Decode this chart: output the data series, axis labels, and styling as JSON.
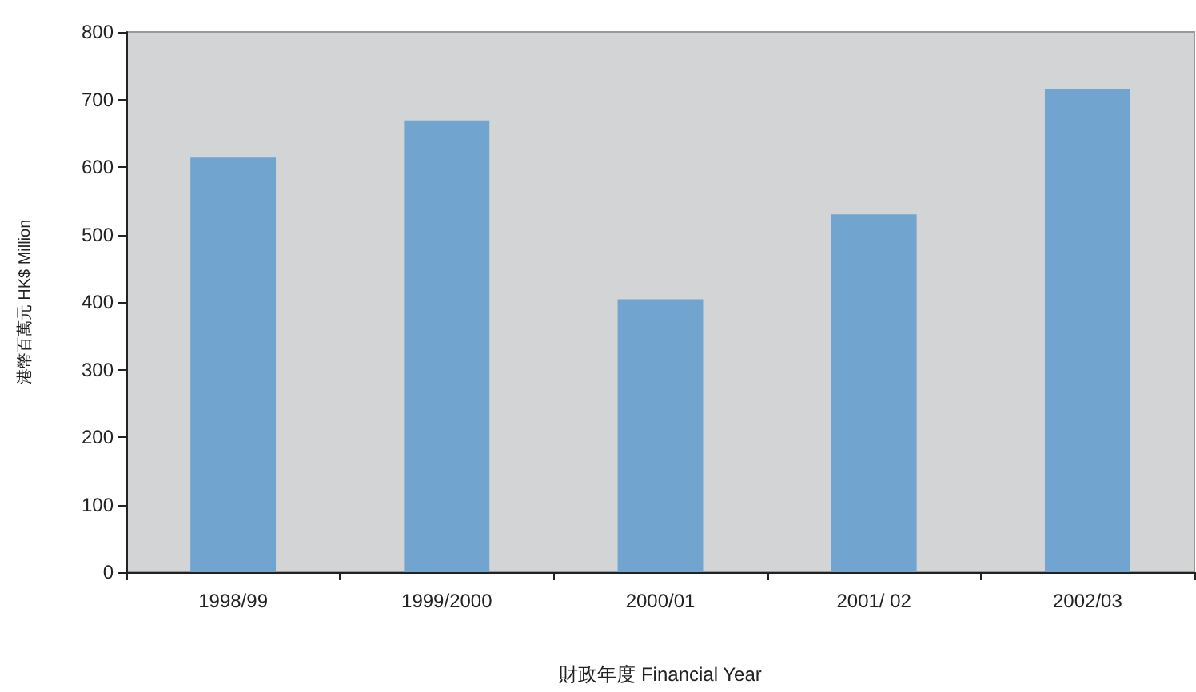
{
  "chart_data": {
    "type": "bar",
    "xlabel": "財政年度 Financial Year",
    "ylabel": "港幣百萬元 HK$ Million",
    "categories": [
      "1998/99",
      "1999/2000",
      "2000/01",
      "2001/ 02",
      "2002/03"
    ],
    "values": [
      614,
      669,
      404,
      530,
      715
    ],
    "color": "#71a5d0",
    "ylim": [
      0,
      800
    ],
    "yticks": [
      0,
      100,
      200,
      300,
      400,
      500,
      600,
      700,
      800
    ],
    "grid": false
  }
}
